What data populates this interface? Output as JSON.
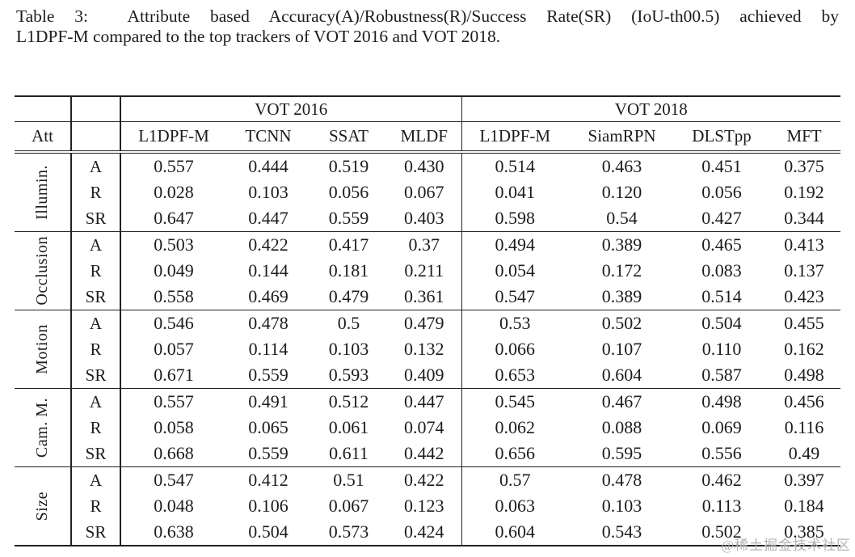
{
  "caption": {
    "line1": "Table 3:  Attribute based Accuracy(A)/Robustness(R)/Success Rate(SR) (IoU-th00.5) achieved by",
    "line2": "L1DPF-M compared to the top trackers of VOT 2016 and VOT 2018."
  },
  "table": {
    "att_header": "Att",
    "group_headers": [
      "VOT 2016",
      "VOT 2018"
    ],
    "tracker_headers": {
      "vot2016": [
        "L1DPF-M",
        "TCNN",
        "SSAT",
        "MLDF"
      ],
      "vot2018": [
        "L1DPF-M",
        "SiamRPN",
        "DLSTpp",
        "MFT"
      ]
    },
    "metric_keys": [
      "A",
      "R",
      "SR"
    ],
    "groups": [
      {
        "attribute": "Illumin.",
        "rows": [
          {
            "key": "A",
            "vot2016": [
              "0.557",
              "0.444",
              "0.519",
              "0.430"
            ],
            "vot2018": [
              "0.514",
              "0.463",
              "0.451",
              "0.375"
            ]
          },
          {
            "key": "R",
            "vot2016": [
              "0.028",
              "0.103",
              "0.056",
              "0.067"
            ],
            "vot2018": [
              "0.041",
              "0.120",
              "0.056",
              "0.192"
            ]
          },
          {
            "key": "SR",
            "vot2016": [
              "0.647",
              "0.447",
              "0.559",
              "0.403"
            ],
            "vot2018": [
              "0.598",
              "0.54",
              "0.427",
              "0.344"
            ]
          }
        ]
      },
      {
        "attribute": "Occlusion",
        "rows": [
          {
            "key": "A",
            "vot2016": [
              "0.503",
              "0.422",
              "0.417",
              "0.37"
            ],
            "vot2018": [
              "0.494",
              "0.389",
              "0.465",
              "0.413"
            ]
          },
          {
            "key": "R",
            "vot2016": [
              "0.049",
              "0.144",
              "0.181",
              "0.211"
            ],
            "vot2018": [
              "0.054",
              "0.172",
              "0.083",
              "0.137"
            ]
          },
          {
            "key": "SR",
            "vot2016": [
              "0.558",
              "0.469",
              "0.479",
              "0.361"
            ],
            "vot2018": [
              "0.547",
              "0.389",
              "0.514",
              "0.423"
            ]
          }
        ]
      },
      {
        "attribute": "Motion",
        "rows": [
          {
            "key": "A",
            "vot2016": [
              "0.546",
              "0.478",
              "0.5",
              "0.479"
            ],
            "vot2018": [
              "0.53",
              "0.502",
              "0.504",
              "0.455"
            ]
          },
          {
            "key": "R",
            "vot2016": [
              "0.057",
              "0.114",
              "0.103",
              "0.132"
            ],
            "vot2018": [
              "0.066",
              "0.107",
              "0.110",
              "0.162"
            ]
          },
          {
            "key": "SR",
            "vot2016": [
              "0.671",
              "0.559",
              "0.593",
              "0.409"
            ],
            "vot2018": [
              "0.653",
              "0.604",
              "0.587",
              "0.498"
            ]
          }
        ]
      },
      {
        "attribute": "Cam. M.",
        "rows": [
          {
            "key": "A",
            "vot2016": [
              "0.557",
              "0.491",
              "0.512",
              "0.447"
            ],
            "vot2018": [
              "0.545",
              "0.467",
              "0.498",
              "0.456"
            ]
          },
          {
            "key": "R",
            "vot2016": [
              "0.058",
              "0.065",
              "0.061",
              "0.074"
            ],
            "vot2018": [
              "0.062",
              "0.088",
              "0.069",
              "0.116"
            ]
          },
          {
            "key": "SR",
            "vot2016": [
              "0.668",
              "0.559",
              "0.611",
              "0.442"
            ],
            "vot2018": [
              "0.656",
              "0.595",
              "0.556",
              "0.49"
            ]
          }
        ]
      },
      {
        "attribute": "Size",
        "rows": [
          {
            "key": "A",
            "vot2016": [
              "0.547",
              "0.412",
              "0.51",
              "0.422"
            ],
            "vot2018": [
              "0.57",
              "0.478",
              "0.462",
              "0.397"
            ]
          },
          {
            "key": "R",
            "vot2016": [
              "0.048",
              "0.106",
              "0.067",
              "0.123"
            ],
            "vot2018": [
              "0.063",
              "0.103",
              "0.113",
              "0.184"
            ]
          },
          {
            "key": "SR",
            "vot2016": [
              "0.638",
              "0.504",
              "0.573",
              "0.424"
            ],
            "vot2018": [
              "0.604",
              "0.543",
              "0.502",
              "0.385"
            ]
          }
        ]
      }
    ]
  },
  "watermark": {
    "text": "@稀土掘金技术社区",
    "color": "#b3b3b3"
  }
}
